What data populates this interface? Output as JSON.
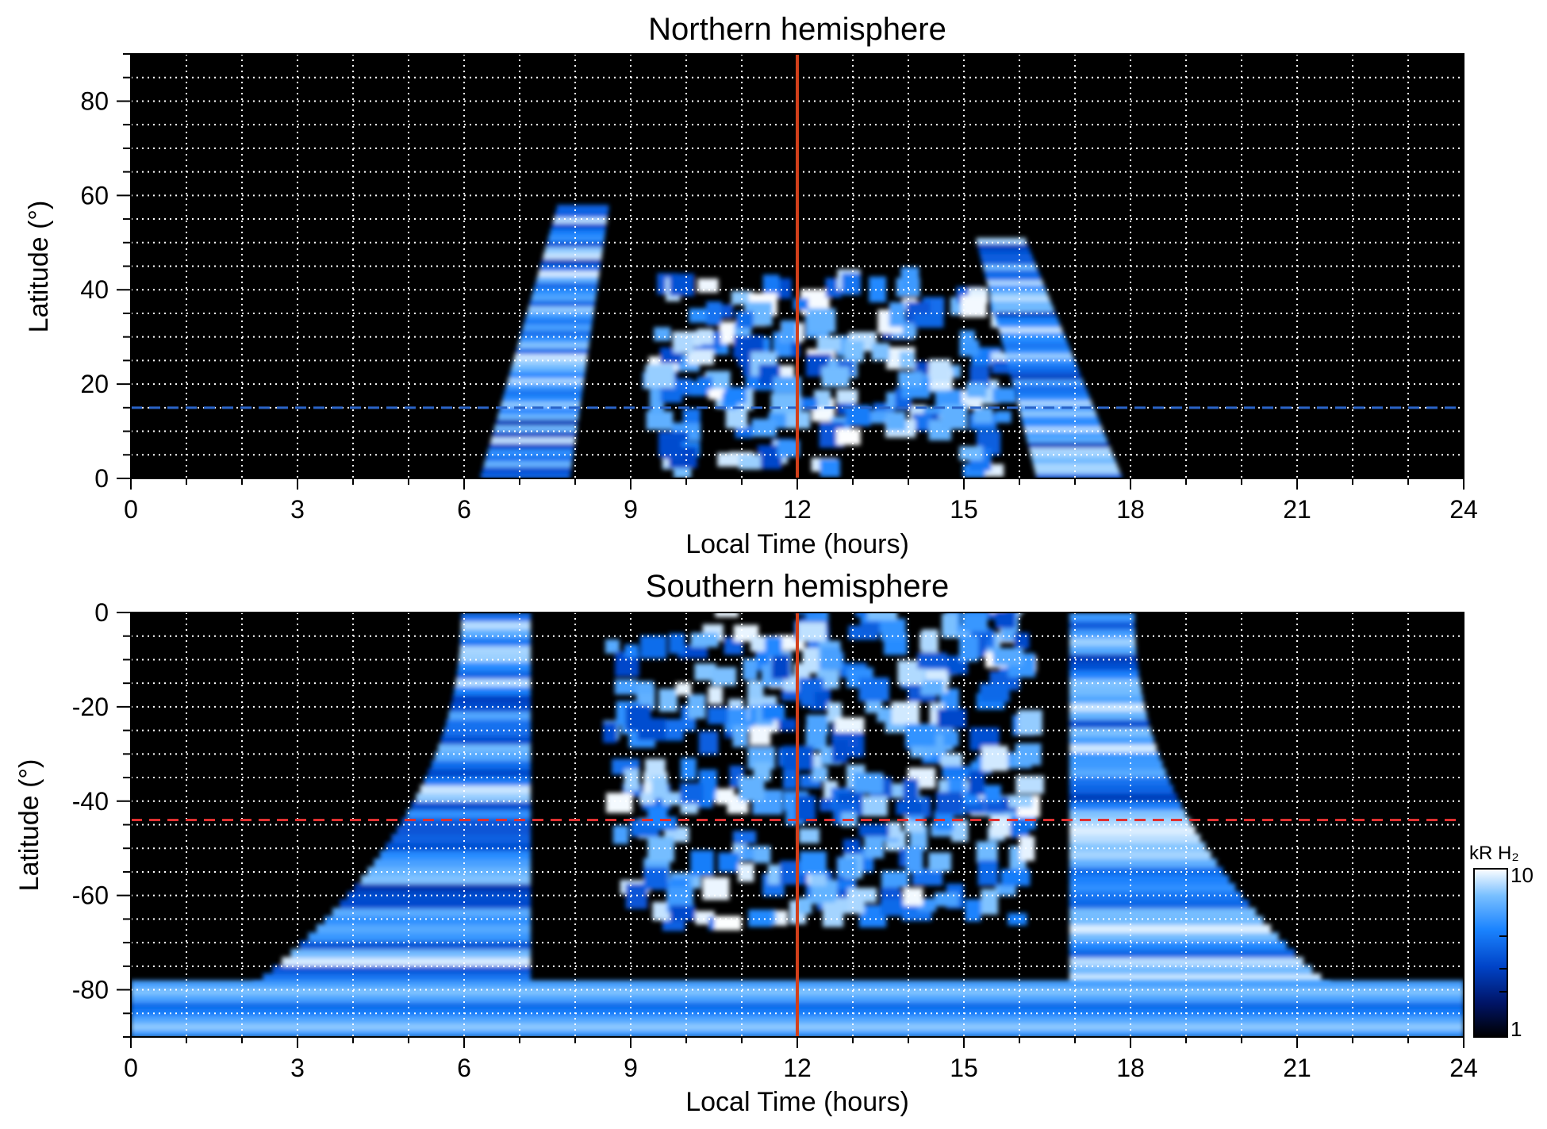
{
  "figure": {
    "colorbar": {
      "label": "kR H₂",
      "max_label": "10",
      "min_label": "1",
      "scale": "log",
      "range": [
        1,
        10
      ],
      "colors": [
        "#000000",
        "#001466",
        "#0044c8",
        "#1b84ff",
        "#78bfff",
        "#ffffff"
      ]
    },
    "reference_line_color": "#d2401b",
    "dotted_grid_color": "#ffffff"
  },
  "chart_data": [
    {
      "type": "heatmap",
      "id": "north",
      "title": "Northern hemisphere",
      "xlabel": "Local Time (hours)",
      "ylabel": "Latitude (°)",
      "xlim": [
        0,
        24
      ],
      "ylim": [
        0,
        90
      ],
      "xticks": [
        "0",
        "3",
        "6",
        "9",
        "12",
        "15",
        "18",
        "21",
        "24"
      ],
      "yticks": [
        "0",
        "20",
        "40",
        "60",
        "80"
      ],
      "grid": true,
      "vertical_reference_line": {
        "x": 12,
        "color": "#d2401b",
        "style": "solid"
      },
      "horizontal_reference_line": {
        "y": 15,
        "color": "#2a64c8",
        "style": "dashed"
      },
      "bright_regions": [
        {
          "name": "dawn arc",
          "lt_range": [
            6.3,
            8.6
          ],
          "lat_range": [
            0,
            58
          ],
          "peak_kR": 10
        },
        {
          "name": "noon patches",
          "lt_range": [
            9.2,
            15.6
          ],
          "lat_range": [
            0,
            40
          ],
          "peak_kR": 10
        },
        {
          "name": "dusk arc",
          "lt_range": [
            15.8,
            18.0
          ],
          "lat_range": [
            0,
            51
          ],
          "peak_kR": 10
        }
      ]
    },
    {
      "type": "heatmap",
      "id": "south",
      "title": "Southern hemisphere",
      "xlabel": "Local Time (hours)",
      "ylabel": "Latitude (°)",
      "xlim": [
        0,
        24
      ],
      "ylim": [
        -90,
        0
      ],
      "xticks": [
        "0",
        "3",
        "6",
        "9",
        "12",
        "15",
        "18",
        "21",
        "24"
      ],
      "yticks": [
        "0",
        "-20",
        "-40",
        "-60",
        "-80"
      ],
      "grid": true,
      "vertical_reference_line": {
        "x": 12,
        "color": "#d2401b",
        "style": "solid"
      },
      "horizontal_reference_line": {
        "y": -44,
        "color": "#e03030",
        "style": "dashed"
      },
      "bright_regions": [
        {
          "name": "dawn arc",
          "lt_range": [
            2.5,
            7.5
          ],
          "lat_range": [
            -80,
            0
          ],
          "peak_kR": 10
        },
        {
          "name": "noon patches",
          "lt_range": [
            8.5,
            16.0
          ],
          "lat_range": [
            -68,
            0
          ],
          "peak_kR": 10
        },
        {
          "name": "dusk arc",
          "lt_range": [
            16.8,
            21.5
          ],
          "lat_range": [
            -80,
            0
          ],
          "peak_kR": 10
        },
        {
          "name": "polar band",
          "lt_range": [
            0,
            24
          ],
          "lat_range": [
            -90,
            -78
          ],
          "peak_kR": 6
        }
      ]
    }
  ]
}
